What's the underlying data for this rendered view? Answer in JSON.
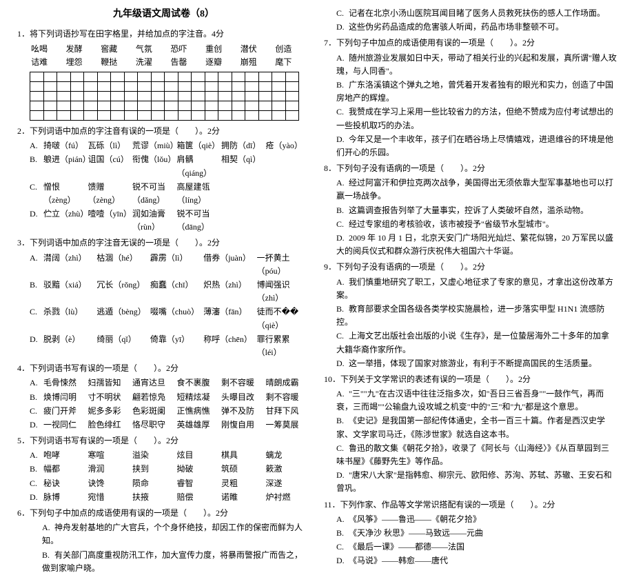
{
  "title": "九年级语文周试卷（8）",
  "q1": {
    "header": "1．将下列词语抄写在田字格里，并给加点的字注音。4分",
    "words_row1": [
      "吆喝",
      "发酵",
      "窖藏",
      "气氛",
      "恐吓",
      "重创",
      "潜伏",
      "创造"
    ],
    "words_row2": [
      "诘难",
      "埋怨",
      "鞭挞",
      "洗濯",
      "告罄",
      "逐瓣",
      "崩殂",
      "麾下"
    ],
    "grid_rows": 5,
    "grid_cols": 20
  },
  "q2": {
    "header": "2．下列词语中加点的字注音有误的一项是（　　）。2分",
    "opts": [
      {
        "label": "A.",
        "items": [
          "掎啵（fú）",
          "瓦砾（lì）",
          "荒谬（miù）",
          "箱箧（qiè）",
          "拥防（dī）",
          "疮（yào）"
        ]
      },
      {
        "label": "B.",
        "items": [
          "躴进（pián）",
          "诅国（cú）",
          "衔傀（lǒu）",
          "肩髃（qiáng）",
          "相契（qì）",
          ""
        ]
      },
      {
        "label": "C.",
        "items": [
          "憎恨（zèng）",
          "馈赠（zèng）",
          "锐不可当（dǎng）",
          "高屋建瓴（líng）",
          "",
          ""
        ]
      },
      {
        "label": "D.",
        "items": [
          "伫立（zhù）",
          "噎噎（yīn）",
          "润如油膏（rùn）",
          "锐不可当（dāng）",
          "",
          ""
        ]
      }
    ]
  },
  "q3": {
    "header": "3．下列词语中加点的字注音无误的一项是（　　）。2分",
    "opts": [
      {
        "label": "A.",
        "items": [
          "潸阔（zhì）",
          "枯涸（hé）",
          "霹雳（lì）",
          "借券（juàn）",
          "一抔黄土（póu）"
        ]
      },
      {
        "label": "B.",
        "items": [
          "驳黯（xiá）",
          "冗长（rǒng）",
          "痴蠢（chī）",
          "炽热（zhì）",
          "博闻强识（zhì）"
        ]
      },
      {
        "label": "C.",
        "items": [
          "杀戮（lù）",
          "逃遁（bèng）",
          "啜嘴（chuò）",
          "薄瀋（fān）",
          "徒而不��（qiè）"
        ]
      },
      {
        "label": "D.",
        "items": [
          "脱剥（è）",
          "绮丽（qǐ）",
          "倚靠（yī）",
          "称呼（chēn）",
          "罪行累累（léi）"
        ]
      }
    ]
  },
  "q4": {
    "header": "4．下列词语书写有误的一项是（　　）。2分",
    "opts": [
      {
        "label": "A.",
        "items": [
          "毛骨悚然",
          "妇孺皆知",
          "通宵达旦",
          "食不裹腹",
          "剩不容暖",
          "晴朗成霸"
        ]
      },
      {
        "label": "B.",
        "items": [
          "焕博闫明",
          "寸不明状",
          "翩若惊凫",
          "短精炫凝",
          "头曝目改",
          "剩不容暖"
        ]
      },
      {
        "label": "C.",
        "items": [
          "疲门开斧",
          "妮多多彩",
          "色彩斑阑",
          "正憔病憔",
          "弹不及防",
          "甘拜下风"
        ]
      },
      {
        "label": "D.",
        "items": [
          "一视同仁",
          "脸色绯红",
          "恪尽职守",
          "英雄雄厚",
          "刚愎自用",
          "一筹莫展"
        ]
      }
    ]
  },
  "q5": {
    "header": "5．下列词语书写有误的一项是（　　）。2分",
    "opts": [
      {
        "label": "A.",
        "items": [
          "咆哮",
          "寒喧",
          "溢染",
          "炫目",
          "棋具",
          "螭龙"
        ]
      },
      {
        "label": "B.",
        "items": [
          "幅都",
          "滑润",
          "挟到",
          "拗破",
          "筑硕",
          "簌激"
        ]
      },
      {
        "label": "C.",
        "items": [
          "秘诀",
          "诀馋",
          "陨命",
          "睿智",
          "灵粗",
          "深遂"
        ]
      },
      {
        "label": "D.",
        "items": [
          "脉博",
          "宛惜",
          "扶掖",
          "赔偿",
          "诺睢",
          "炉衬燃"
        ]
      }
    ]
  },
  "q6": {
    "header": "6．下列句子中加点的成语使用有误的一项是（　　）。2分",
    "opts": [
      {
        "label": "A.",
        "text": "神舟发射基地的广大官兵，个个身怀绝技，却因工作的保密而鲜为人知。"
      },
      {
        "label": "B.",
        "text": "有关部门高度重视防汛工作，加大宣传力度，将暴雨警报广而告之，做到家喻户晓。"
      }
    ]
  },
  "right_q6_cont": [
    {
      "label": "C.",
      "text": "记者在北京小汤山医院耳闻目睹了医务人员救死扶伤的感人工作场面。"
    },
    {
      "label": "D.",
      "text": "这些伪劣药品造成的危害骇人听闻，药品市场非整顿不可。"
    }
  ],
  "q7": {
    "header": "7．下列句子中加点的成语使用有误的一项是（　　）。2分",
    "opts": [
      {
        "label": "A.",
        "text": "随州旅游业发展如日中天，带动了相关行业的兴起和发展，真所谓\"赠人玫瑰，与人同香\"。"
      },
      {
        "label": "B.",
        "text": "广东洛溪镇这个弹丸之地，曾凭着开发者独有的眼光和实力，创造了中国房地产的辉煌。"
      },
      {
        "label": "C.",
        "text": "我赞成在学习上采用一些比较省力的方法，但绝不赞成为应付考试想出的一些投机取巧的办法。"
      },
      {
        "label": "D.",
        "text": "今年又是一个丰收年，孩子们在晒谷场上尽情嬉戏，进退维谷的环境是他们开心的乐园。"
      }
    ]
  },
  "q8": {
    "header": "8．下列句子没有语病的一项是（　　）。2分",
    "opts": [
      {
        "label": "A.",
        "text": "经过阿富汗和伊拉克两次战争，美国得出无须依靠大型军事基地也可以打赢一场战争。"
      },
      {
        "label": "B.",
        "text": "这篇调查报告列举了大量事实，控诉了人类破坏自然，滥杀动物。"
      },
      {
        "label": "C.",
        "text": "经过专家组的考核验收，该市被授予\"省级节水型城市\"。"
      },
      {
        "label": "D.",
        "text": "2009 年 10 月 1 日，北京天安门广场阳光灿烂、繁花似锦，20 万军民以盛大的阅兵仪式和群众游行庆祝伟大祖国六十华诞。"
      }
    ]
  },
  "q9": {
    "header": "9．下列句子没有语病的一项是（　　）。2分",
    "opts": [
      {
        "label": "A.",
        "text": "我们慎重地研究了职工，又虚心地征求了专家的意见，才拿出这份改革方案。"
      },
      {
        "label": "B.",
        "text": "教育部要求全国各级各类学校实施晨检，进一步落实甲型 H1N1 流感防控。"
      },
      {
        "label": "C.",
        "text": "上海文艺出版社会出版的小说《生存》，是一位蛰居海外二十多年的加拿大籍华裔作家所作。"
      },
      {
        "label": "D.",
        "text": "这一举措，体现了国家对旅游业，有利于不断提高国民的生活质量。"
      }
    ]
  },
  "q10": {
    "header": "10．下列关于文学常识的表述有误的一项是（　　）。2分",
    "opts": [
      {
        "label": "A.",
        "text": "\"三\"\"九\"在古汉语中往往泛指多次，如\"吾日三省吾身\"\"一鼓作气，再而衰，三而竭\"\"公输盘九设攻城之机变\"中的\"三\"和\"九\"都是这个意思。"
      },
      {
        "label": "B.",
        "text": "《史记》是我国第一部纪传体通史，全书一百三十篇。作者是西汉史学家、文学家司马迁，《陈涉世家》就选自这本书。"
      },
      {
        "label": "C.",
        "text": "鲁迅的散文集《朝花夕拾》，收录了《阿长与〈山海经〉》《从百草园到三味书屋》《藤野先生》等作品。"
      },
      {
        "label": "D.",
        "text": "\"唐宋八大家\"是指韩愈、柳宗元、欧阳修、苏洵、苏轼、苏辙、王安石和曾巩。"
      }
    ]
  },
  "q11": {
    "header": "11．下列作家、作品等文学常识搭配有误的一项是（　　）。2分",
    "opts": [
      {
        "label": "A.",
        "text": "《风筝》——鲁迅——《朝花夕拾》"
      },
      {
        "label": "B.",
        "text": "《天净沙  秋思》——马致远——元曲"
      },
      {
        "label": "C.",
        "text": "《最后一课》——都德——法国"
      },
      {
        "label": "D.",
        "text": "《马说》——韩愈——唐代"
      }
    ]
  }
}
